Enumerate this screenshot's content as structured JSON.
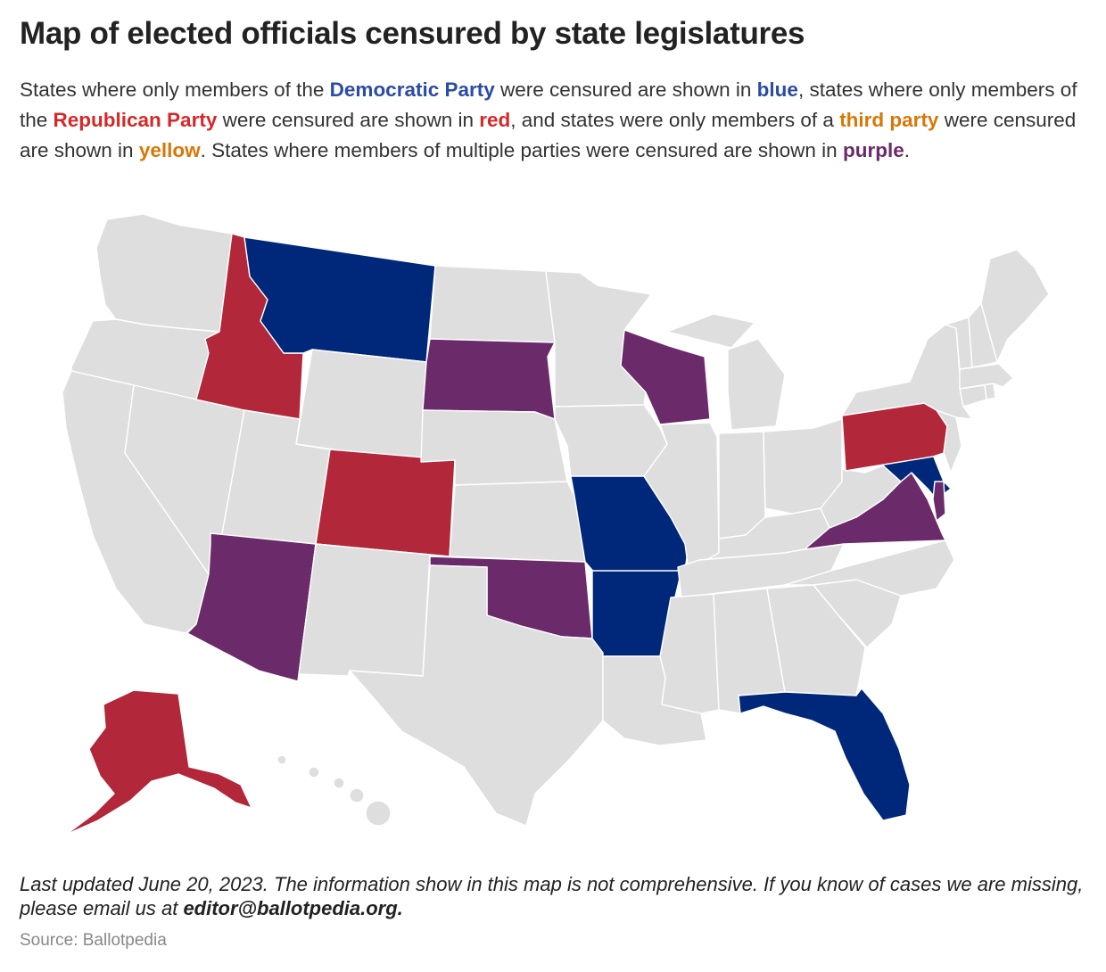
{
  "title": "Map of elected officials censured by state legislatures",
  "subtitle": {
    "p1": "States where only members of the ",
    "dem": "Democratic Party",
    "p2": " were censured are shown in ",
    "blue": "blue",
    "p3": ", states where only members of the ",
    "rep": "Republican Party",
    "p4": " were censured are shown in ",
    "red": "red",
    "p5": ", and states were only members of a ",
    "third": "third party",
    "p6": " were censured are shown in ",
    "yellow": "yellow",
    "p7": ". States where members of multiple parties were censured are shown in ",
    "purple": "purple",
    "p8": "."
  },
  "colors": {
    "democratic": "#00287A",
    "republican": "#B22739",
    "third_party": "#D97706",
    "multiple": "#6B2A6A",
    "none": "#DEDEDE",
    "dem_text": "#2B4BA6",
    "rep_text": "#D62828",
    "third_text": "#D97706",
    "purple_text": "#6B2A6A"
  },
  "states": {
    "Washington": "none",
    "Oregon": "none",
    "California": "none",
    "Nevada": "none",
    "Idaho": "republican",
    "Montana": "democratic",
    "Wyoming": "none",
    "Utah": "none",
    "Arizona": "multiple",
    "Colorado": "republican",
    "New Mexico": "none",
    "North Dakota": "none",
    "South Dakota": "multiple",
    "Nebraska": "none",
    "Kansas": "none",
    "Oklahoma": "multiple",
    "Texas": "none",
    "Minnesota": "none",
    "Iowa": "none",
    "Missouri": "democratic",
    "Arkansas": "democratic",
    "Louisiana": "none",
    "Wisconsin": "multiple",
    "Illinois": "none",
    "Michigan": "none",
    "Indiana": "none",
    "Ohio": "none",
    "Kentucky": "none",
    "Tennessee": "none",
    "Mississippi": "none",
    "Alabama": "none",
    "Georgia": "none",
    "Florida": "democratic",
    "South Carolina": "none",
    "North Carolina": "none",
    "Virginia": "multiple",
    "West Virginia": "none",
    "Maryland": "democratic",
    "Delaware": "multiple",
    "Pennsylvania": "republican",
    "New Jersey": "none",
    "New York": "none",
    "Connecticut": "none",
    "Rhode Island": "none",
    "Massachusetts": "none",
    "Vermont": "none",
    "New Hampshire": "none",
    "Maine": "none",
    "Alaska": "republican",
    "Hawaii": "none"
  },
  "footnote": {
    "text": "Last updated June 20, 2023. The information show in this map is not comprehensive. If you know of cases we are missing, please email us at ",
    "email": "editor@ballotpedia.org."
  },
  "source": "Source: Ballotpedia"
}
